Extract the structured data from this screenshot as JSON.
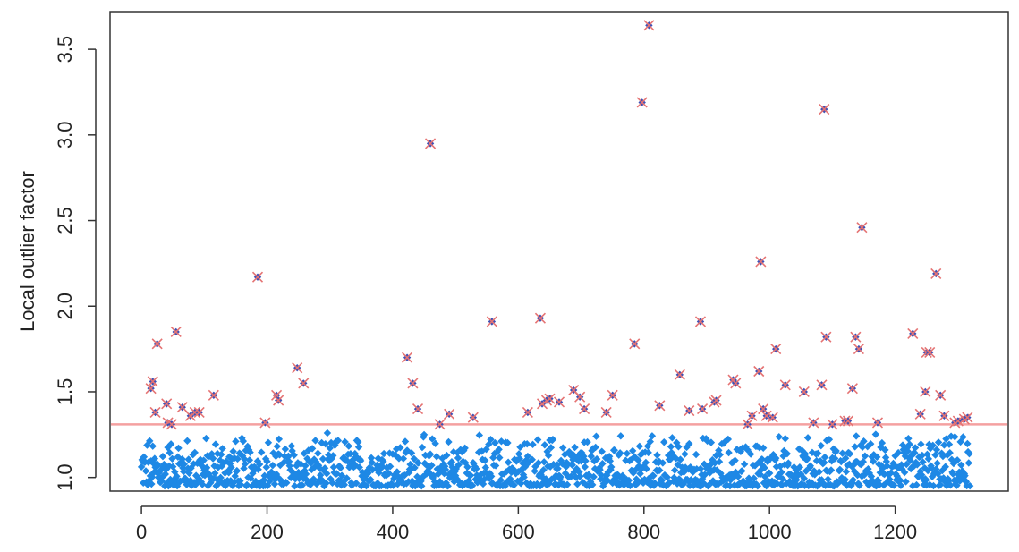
{
  "chart_data": {
    "type": "scatter",
    "title": "",
    "xlabel": "",
    "ylabel": "Local outlier factor",
    "xlim": [
      -50,
      1380
    ],
    "ylim": [
      0.92,
      3.72
    ],
    "xticks": [
      "0",
      "200",
      "400",
      "600",
      "800",
      "1000",
      "1200"
    ],
    "xtick_values": [
      0,
      200,
      400,
      600,
      800,
      1000,
      1200
    ],
    "yticks": [
      "1.0",
      "1.5",
      "2.0",
      "2.5",
      "3.0",
      "3.5"
    ],
    "ytick_values": [
      1.0,
      1.5,
      2.0,
      2.5,
      3.0,
      3.5
    ],
    "grid": false,
    "legend": "none",
    "threshold": 1.31,
    "colors": {
      "points": "#1e88e5",
      "outlier_marker": "#e57373",
      "outlier_center": "#3f51b5",
      "threshold_line": "#f4a0a0",
      "axis": "#333333"
    },
    "normal_series": {
      "n": 1320,
      "x_range": [
        0,
        1320
      ],
      "y_range": [
        0.95,
        1.27
      ],
      "description_of_marks": "dense band of diamond markers"
    },
    "outliers": [
      {
        "x": 15,
        "y": 1.52
      },
      {
        "x": 18,
        "y": 1.56
      },
      {
        "x": 22,
        "y": 1.38
      },
      {
        "x": 25,
        "y": 1.78
      },
      {
        "x": 40,
        "y": 1.43
      },
      {
        "x": 42,
        "y": 1.32
      },
      {
        "x": 48,
        "y": 1.31
      },
      {
        "x": 55,
        "y": 1.85
      },
      {
        "x": 65,
        "y": 1.41
      },
      {
        "x": 78,
        "y": 1.36
      },
      {
        "x": 85,
        "y": 1.38
      },
      {
        "x": 92,
        "y": 1.38
      },
      {
        "x": 115,
        "y": 1.48
      },
      {
        "x": 185,
        "y": 2.17
      },
      {
        "x": 197,
        "y": 1.32
      },
      {
        "x": 215,
        "y": 1.48
      },
      {
        "x": 218,
        "y": 1.45
      },
      {
        "x": 248,
        "y": 1.64
      },
      {
        "x": 258,
        "y": 1.55
      },
      {
        "x": 423,
        "y": 1.7
      },
      {
        "x": 432,
        "y": 1.55
      },
      {
        "x": 440,
        "y": 1.4
      },
      {
        "x": 460,
        "y": 2.95
      },
      {
        "x": 475,
        "y": 1.31
      },
      {
        "x": 490,
        "y": 1.37
      },
      {
        "x": 528,
        "y": 1.35
      },
      {
        "x": 558,
        "y": 1.91
      },
      {
        "x": 615,
        "y": 1.38
      },
      {
        "x": 635,
        "y": 1.93
      },
      {
        "x": 638,
        "y": 1.43
      },
      {
        "x": 645,
        "y": 1.45
      },
      {
        "x": 650,
        "y": 1.46
      },
      {
        "x": 665,
        "y": 1.44
      },
      {
        "x": 688,
        "y": 1.51
      },
      {
        "x": 698,
        "y": 1.47
      },
      {
        "x": 705,
        "y": 1.4
      },
      {
        "x": 740,
        "y": 1.38
      },
      {
        "x": 750,
        "y": 1.48
      },
      {
        "x": 785,
        "y": 1.78
      },
      {
        "x": 797,
        "y": 3.19
      },
      {
        "x": 808,
        "y": 3.64
      },
      {
        "x": 825,
        "y": 1.42
      },
      {
        "x": 857,
        "y": 1.6
      },
      {
        "x": 872,
        "y": 1.39
      },
      {
        "x": 890,
        "y": 1.91
      },
      {
        "x": 893,
        "y": 1.4
      },
      {
        "x": 912,
        "y": 1.44
      },
      {
        "x": 915,
        "y": 1.45
      },
      {
        "x": 942,
        "y": 1.57
      },
      {
        "x": 946,
        "y": 1.55
      },
      {
        "x": 965,
        "y": 1.31
      },
      {
        "x": 972,
        "y": 1.36
      },
      {
        "x": 983,
        "y": 1.62
      },
      {
        "x": 986,
        "y": 2.26
      },
      {
        "x": 990,
        "y": 1.4
      },
      {
        "x": 995,
        "y": 1.36
      },
      {
        "x": 1005,
        "y": 1.35
      },
      {
        "x": 1010,
        "y": 1.75
      },
      {
        "x": 1025,
        "y": 1.54
      },
      {
        "x": 1055,
        "y": 1.5
      },
      {
        "x": 1070,
        "y": 1.32
      },
      {
        "x": 1083,
        "y": 1.54
      },
      {
        "x": 1087,
        "y": 3.15
      },
      {
        "x": 1090,
        "y": 1.82
      },
      {
        "x": 1100,
        "y": 1.31
      },
      {
        "x": 1120,
        "y": 1.33
      },
      {
        "x": 1125,
        "y": 1.33
      },
      {
        "x": 1132,
        "y": 1.52
      },
      {
        "x": 1137,
        "y": 1.82
      },
      {
        "x": 1142,
        "y": 1.75
      },
      {
        "x": 1147,
        "y": 2.46
      },
      {
        "x": 1172,
        "y": 1.32
      },
      {
        "x": 1228,
        "y": 1.84
      },
      {
        "x": 1240,
        "y": 1.37
      },
      {
        "x": 1248,
        "y": 1.5
      },
      {
        "x": 1250,
        "y": 1.73
      },
      {
        "x": 1255,
        "y": 1.73
      },
      {
        "x": 1265,
        "y": 2.19
      },
      {
        "x": 1272,
        "y": 1.48
      },
      {
        "x": 1278,
        "y": 1.36
      },
      {
        "x": 1295,
        "y": 1.32
      },
      {
        "x": 1300,
        "y": 1.33
      },
      {
        "x": 1310,
        "y": 1.34
      },
      {
        "x": 1315,
        "y": 1.35
      }
    ]
  }
}
